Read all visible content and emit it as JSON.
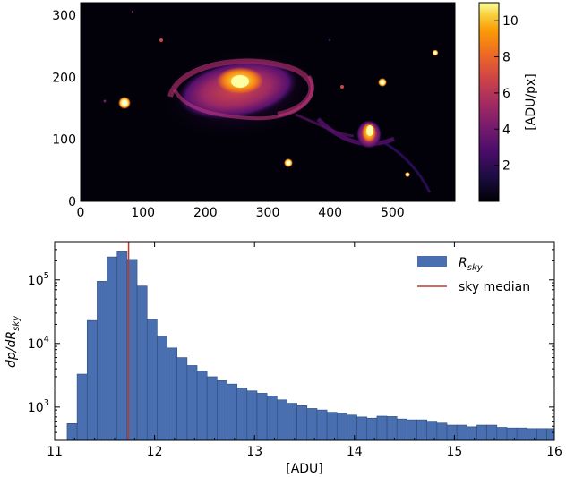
{
  "chart_data": [
    {
      "type": "heatmap",
      "title": "",
      "xlabel": "",
      "ylabel": "",
      "xlim": [
        0,
        600
      ],
      "ylim": [
        0,
        320
      ],
      "x_ticks": [
        "0",
        "100",
        "200",
        "300",
        "400",
        "500"
      ],
      "y_ticks": [
        "0",
        "100",
        "200",
        "300"
      ],
      "colorbar": {
        "label": "[ADU/px]",
        "range": [
          0,
          11
        ],
        "ticks": [
          "2",
          "4",
          "6",
          "8",
          "10"
        ],
        "colormap": "inferno"
      },
      "features": [
        {
          "name": "main galaxy core",
          "x": 262,
          "y": 195
        },
        {
          "name": "companion galaxy",
          "x": 462,
          "y": 108
        },
        {
          "name": "star",
          "x": 71,
          "y": 160
        },
        {
          "name": "star",
          "x": 334,
          "y": 63
        },
        {
          "name": "star",
          "x": 485,
          "y": 192
        },
        {
          "name": "star",
          "x": 570,
          "y": 240
        },
        {
          "name": "star",
          "x": 525,
          "y": 43
        },
        {
          "name": "star",
          "x": 128,
          "y": 260
        },
        {
          "name": "star",
          "x": 420,
          "y": 185
        }
      ]
    },
    {
      "type": "bar",
      "title": "",
      "xlabel": "[ADU]",
      "ylabel": "dp/dR_sky",
      "ylabel_parts": {
        "main": "dp/dR",
        "sub": "sky"
      },
      "xlim": [
        11,
        16
      ],
      "ylim": [
        300,
        400000
      ],
      "yscale": "log",
      "x_ticks": [
        "11",
        "12",
        "13",
        "14",
        "15",
        "16"
      ],
      "y_ticks": [
        {
          "base": "10",
          "exp": "3",
          "value": 1000
        },
        {
          "base": "10",
          "exp": "4",
          "value": 10000
        },
        {
          "base": "10",
          "exp": "5",
          "value": 100000
        }
      ],
      "bin_edges": [
        11.125,
        11.225,
        11.325,
        11.425,
        11.525,
        11.625,
        11.725,
        11.825,
        11.925,
        12.025,
        12.125,
        12.225,
        12.325,
        12.425,
        12.525,
        12.625,
        12.725,
        12.825,
        12.925,
        13.025,
        13.125,
        13.225,
        13.325,
        13.425,
        13.525,
        13.625,
        13.725,
        13.825,
        13.925,
        14.025,
        14.125,
        14.225,
        14.325,
        14.425,
        14.525,
        14.625,
        14.725,
        14.825,
        14.925,
        15.025,
        15.125,
        15.225,
        15.325,
        15.425,
        15.525,
        15.625,
        15.725,
        15.825,
        15.925,
        16.025
      ],
      "values": [
        550,
        3300,
        23000,
        95000,
        230000,
        280000,
        210000,
        80000,
        24000,
        13000,
        8500,
        6000,
        4500,
        3700,
        3000,
        2600,
        2300,
        2000,
        1800,
        1650,
        1500,
        1300,
        1150,
        1050,
        950,
        900,
        830,
        800,
        750,
        700,
        670,
        720,
        710,
        650,
        630,
        630,
        600,
        560,
        520,
        520,
        490,
        520,
        520,
        480,
        470,
        470,
        460,
        460,
        460
      ],
      "bar_color": "#4a6fb0",
      "median_line": {
        "x": 11.74,
        "color": "#c0392b"
      },
      "legend": {
        "placement": "top-right",
        "entries": [
          {
            "main": "R",
            "sub": "sky",
            "style": "patch",
            "color": "#4a6fb0"
          },
          {
            "label": "sky median",
            "style": "line",
            "color": "#c0392b"
          }
        ]
      }
    }
  ]
}
